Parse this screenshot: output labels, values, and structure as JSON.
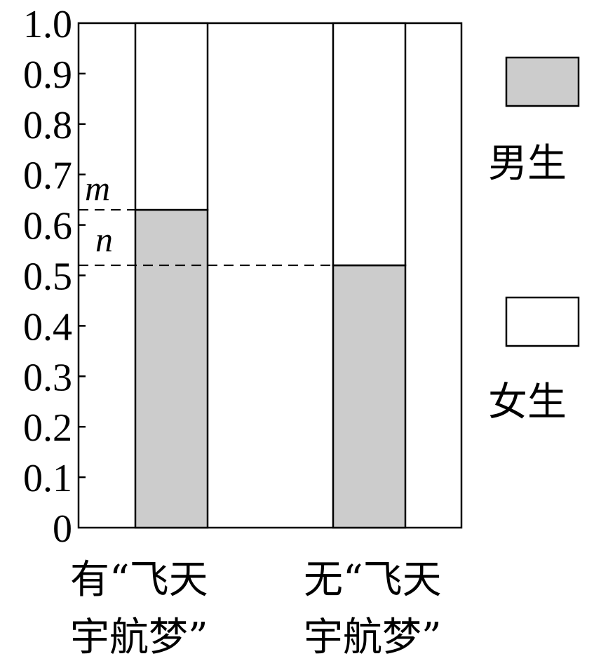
{
  "chart_data": {
    "type": "bar",
    "stacked": true,
    "ylim": [
      0,
      1
    ],
    "y_ticks": [
      "0",
      "0.1",
      "0.2",
      "0.3",
      "0.4",
      "0.5",
      "0.6",
      "0.7",
      "0.8",
      "0.9",
      "1.0"
    ],
    "categories": [
      [
        "有“飞天",
        "宇航梦”"
      ],
      [
        "无“飞天",
        "宇航梦”"
      ]
    ],
    "series": [
      {
        "name": "男生",
        "values": [
          0.63,
          0.52
        ],
        "color": "#cccccc"
      },
      {
        "name": "女生",
        "values": [
          0.37,
          0.48
        ],
        "color": "#ffffff"
      }
    ],
    "annotations": [
      {
        "label": "m",
        "y": 0.63,
        "style": "dashed"
      },
      {
        "label": "n",
        "y": 0.52,
        "style": "dashed"
      }
    ],
    "legend_position": "right",
    "grid": false
  }
}
